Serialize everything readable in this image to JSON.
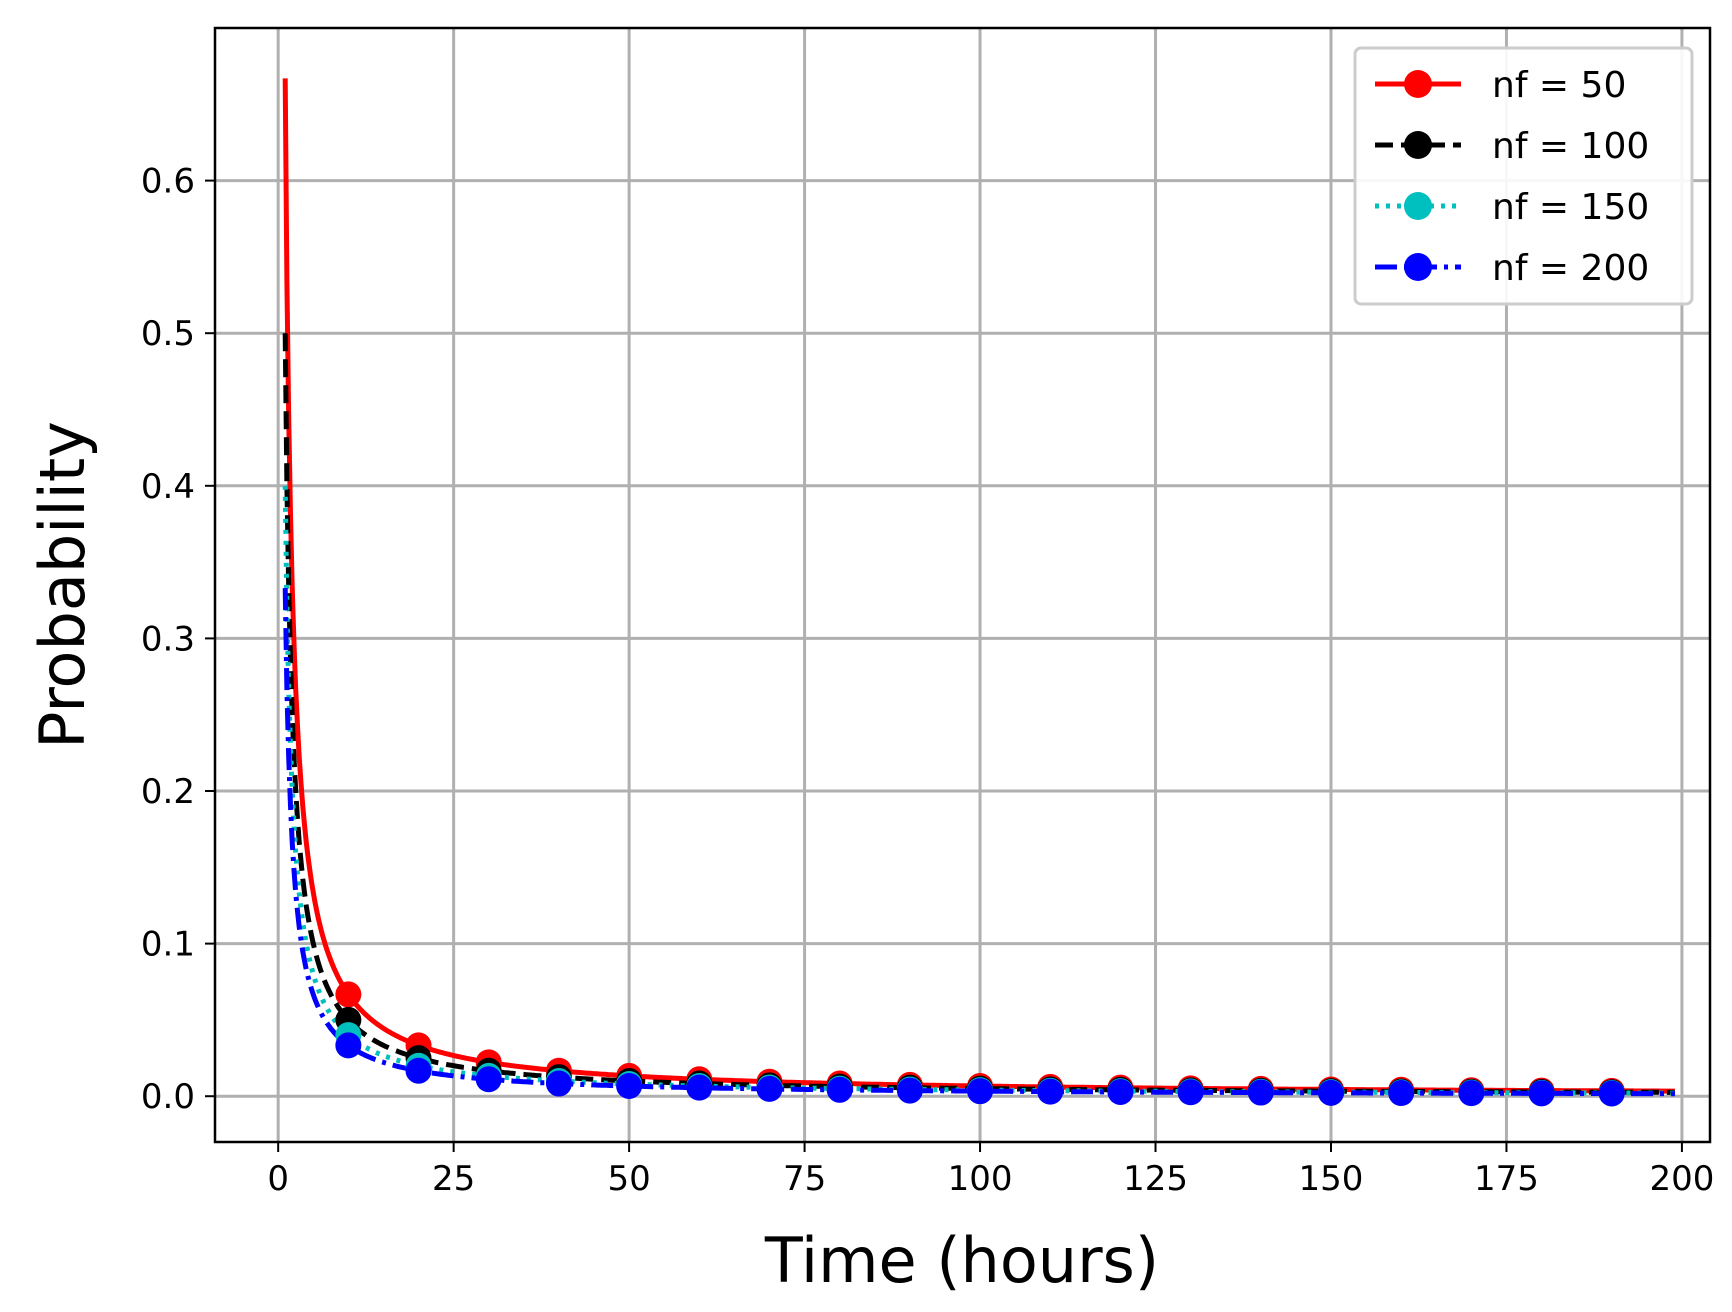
{
  "chart_data": {
    "type": "line",
    "title": "",
    "xlabel": "Time (hours)",
    "ylabel": "Probability",
    "xlim": [
      -9,
      204
    ],
    "ylim": [
      -0.03,
      0.7
    ],
    "xticks": [
      0,
      25,
      50,
      75,
      100,
      125,
      150,
      175,
      200
    ],
    "yticks": [
      0.0,
      0.1,
      0.2,
      0.3,
      0.4,
      0.5,
      0.6
    ],
    "xtick_labels": [
      "0",
      "25",
      "50",
      "75",
      "100",
      "125",
      "150",
      "175",
      "200"
    ],
    "ytick_labels": [
      "0.0",
      "0.1",
      "0.2",
      "0.3",
      "0.4",
      "0.5",
      "0.6"
    ],
    "grid": true,
    "legend_position": "top-right",
    "x_range": [
      1,
      199
    ],
    "marker_x": [
      10,
      20,
      30,
      40,
      50,
      60,
      70,
      80,
      90,
      100,
      110,
      120,
      130,
      140,
      150,
      160,
      170,
      180,
      190
    ],
    "series": [
      {
        "name": "nf = 50",
        "label": "nf = 50",
        "color": "#ff0000",
        "linestyle": "solid",
        "marker": "circle",
        "y_at_t1": 0.667,
        "marker_values": [
          0.0667,
          0.0333,
          0.0222,
          0.0167,
          0.0133,
          0.0111,
          0.0095,
          0.0083,
          0.0074,
          0.0067,
          0.0061,
          0.0056,
          0.0051,
          0.0048,
          0.0044,
          0.0042,
          0.0039,
          0.0037,
          0.0035
        ],
        "y_at_t199": 0.0034
      },
      {
        "name": "nf = 100",
        "label": "nf = 100",
        "color": "#000000",
        "linestyle": "dashed",
        "marker": "circle",
        "y_at_t1": 0.5,
        "marker_values": [
          0.05,
          0.025,
          0.0167,
          0.0125,
          0.01,
          0.0083,
          0.0071,
          0.0063,
          0.0056,
          0.005,
          0.0045,
          0.0042,
          0.0038,
          0.0036,
          0.0033,
          0.0031,
          0.0029,
          0.0028,
          0.0026
        ],
        "y_at_t199": 0.0025
      },
      {
        "name": "nf = 150",
        "label": "nf = 150",
        "color": "#00bfbf",
        "linestyle": "dotted",
        "marker": "circle",
        "y_at_t1": 0.4,
        "marker_values": [
          0.04,
          0.02,
          0.0133,
          0.01,
          0.008,
          0.0067,
          0.0057,
          0.005,
          0.0044,
          0.004,
          0.0036,
          0.0033,
          0.0031,
          0.0029,
          0.0027,
          0.0025,
          0.0024,
          0.0022,
          0.0021
        ],
        "y_at_t199": 0.002
      },
      {
        "name": "nf = 200",
        "label": "nf = 200",
        "color": "#0000ff",
        "linestyle": "dashdot",
        "marker": "circle",
        "y_at_t1": 0.333,
        "marker_values": [
          0.0333,
          0.0167,
          0.0111,
          0.0083,
          0.0067,
          0.0056,
          0.0048,
          0.0042,
          0.0037,
          0.0033,
          0.003,
          0.0028,
          0.0026,
          0.0024,
          0.0022,
          0.0021,
          0.002,
          0.0019,
          0.0018
        ],
        "y_at_t199": 0.0017
      }
    ]
  }
}
